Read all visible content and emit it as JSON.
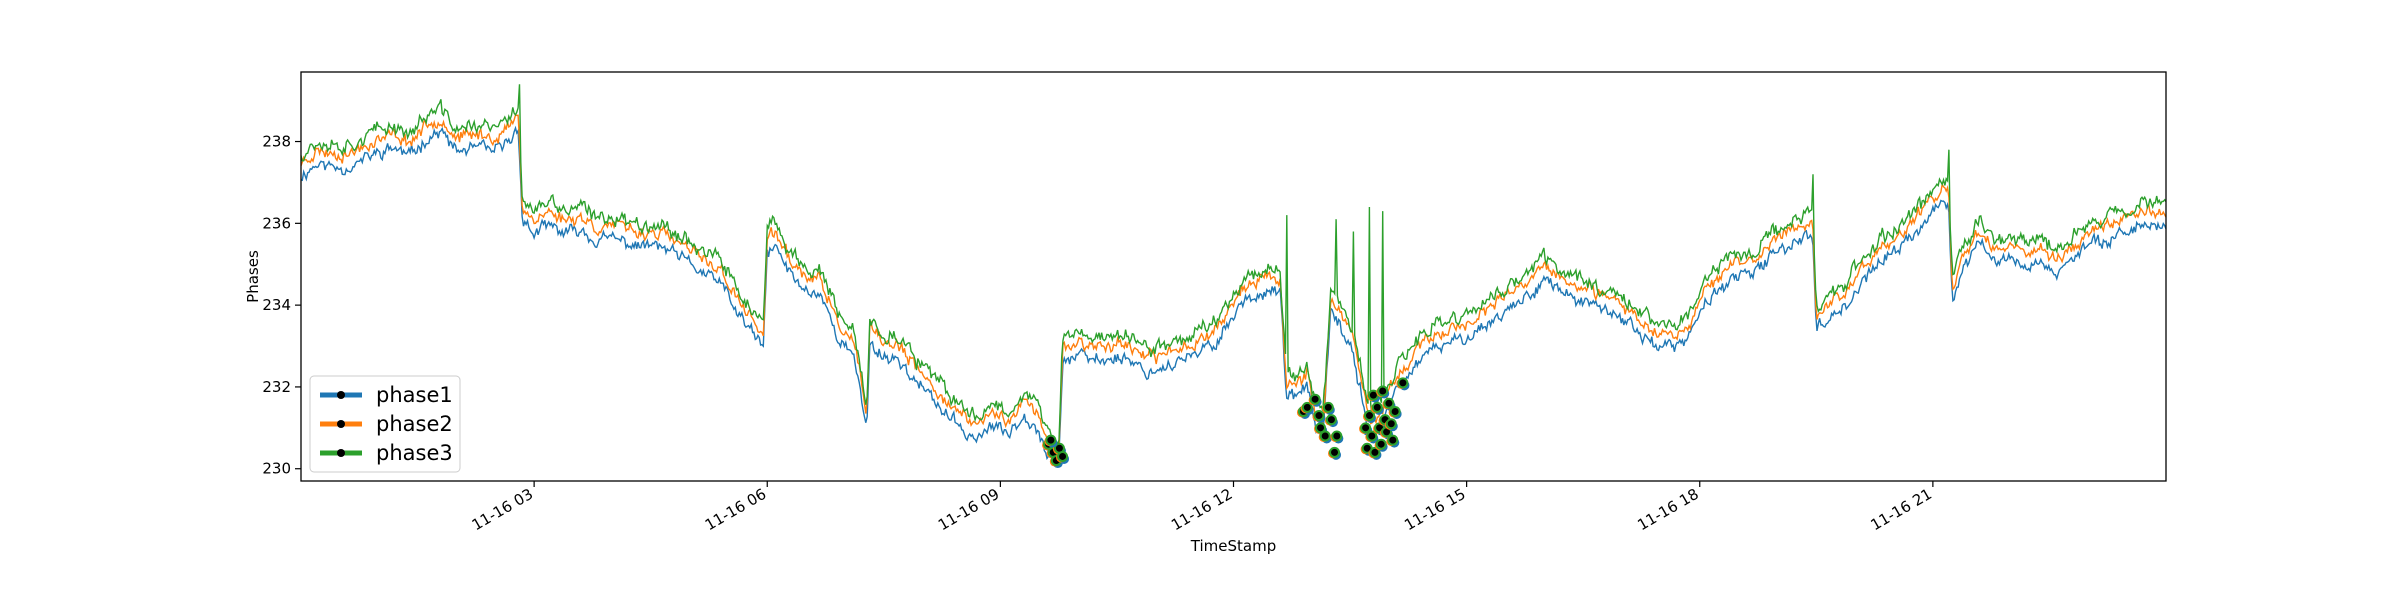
{
  "chart_data": {
    "type": "line",
    "title": "",
    "xlabel": "TimeStamp",
    "ylabel": "Phases",
    "x_range_hours": [
      0,
      24
    ],
    "x_ticks": [
      {
        "hour": 3,
        "label": "11-16 03"
      },
      {
        "hour": 6,
        "label": "11-16 06"
      },
      {
        "hour": 9,
        "label": "11-16 09"
      },
      {
        "hour": 12,
        "label": "11-16 12"
      },
      {
        "hour": 15,
        "label": "11-16 15"
      },
      {
        "hour": 18,
        "label": "11-16 18"
      },
      {
        "hour": 21,
        "label": "11-16 21"
      }
    ],
    "ylim": [
      229.7,
      239.7
    ],
    "y_ticks": [
      230,
      232,
      234,
      236,
      238
    ],
    "grid": false,
    "legend": "lower-left",
    "baseline": [
      [
        0,
        237.4
      ],
      [
        0.2,
        237.7
      ],
      [
        0.6,
        237.6
      ],
      [
        0.9,
        237.9
      ],
      [
        1.2,
        238.1
      ],
      [
        1.4,
        237.9
      ],
      [
        1.6,
        238.3
      ],
      [
        1.8,
        238.5
      ],
      [
        2.0,
        238.0
      ],
      [
        2.3,
        238.1
      ],
      [
        2.5,
        238.0
      ],
      [
        2.7,
        238.3
      ],
      [
        2.8,
        238.6
      ],
      [
        2.85,
        236.3
      ],
      [
        3.0,
        236.0
      ],
      [
        3.2,
        236.2
      ],
      [
        3.4,
        236.0
      ],
      [
        3.6,
        236.1
      ],
      [
        3.8,
        235.8
      ],
      [
        4.0,
        235.9
      ],
      [
        4.3,
        235.7
      ],
      [
        4.6,
        235.7
      ],
      [
        4.9,
        235.4
      ],
      [
        5.2,
        235.0
      ],
      [
        5.4,
        234.8
      ],
      [
        5.6,
        234.1
      ],
      [
        5.8,
        233.6
      ],
      [
        5.95,
        233.2
      ],
      [
        6.0,
        235.5
      ],
      [
        6.1,
        235.7
      ],
      [
        6.3,
        235.0
      ],
      [
        6.5,
        234.6
      ],
      [
        6.7,
        234.5
      ],
      [
        6.9,
        233.5
      ],
      [
        7.1,
        233.0
      ],
      [
        7.2,
        232.2
      ],
      [
        7.28,
        231.2
      ],
      [
        7.32,
        233.3
      ],
      [
        7.5,
        233.0
      ],
      [
        7.7,
        232.9
      ],
      [
        7.9,
        232.4
      ],
      [
        8.1,
        232.0
      ],
      [
        8.3,
        231.6
      ],
      [
        8.5,
        231.2
      ],
      [
        8.7,
        231.0
      ],
      [
        8.9,
        231.3
      ],
      [
        9.1,
        231.1
      ],
      [
        9.3,
        231.6
      ],
      [
        9.5,
        231.2
      ],
      [
        9.6,
        230.6
      ],
      [
        9.75,
        230.3
      ],
      [
        9.8,
        232.9
      ],
      [
        10.0,
        233.0
      ],
      [
        10.3,
        232.9
      ],
      [
        10.6,
        233.0
      ],
      [
        10.9,
        232.6
      ],
      [
        11.2,
        232.8
      ],
      [
        11.5,
        233.0
      ],
      [
        11.8,
        233.4
      ],
      [
        12.1,
        234.3
      ],
      [
        12.4,
        234.6
      ],
      [
        12.6,
        234.6
      ],
      [
        12.68,
        232.0
      ],
      [
        12.8,
        232.0
      ],
      [
        12.95,
        232.3
      ],
      [
        13.05,
        231.3
      ],
      [
        13.15,
        231.0
      ],
      [
        13.25,
        234.0
      ],
      [
        13.35,
        233.8
      ],
      [
        13.45,
        233.4
      ],
      [
        13.55,
        233.0
      ],
      [
        13.62,
        232.3
      ],
      [
        13.7,
        231.5
      ],
      [
        13.78,
        231.0
      ],
      [
        13.9,
        231.3
      ],
      [
        14.05,
        232.0
      ],
      [
        14.3,
        232.7
      ],
      [
        14.6,
        233.2
      ],
      [
        14.9,
        233.4
      ],
      [
        15.2,
        233.7
      ],
      [
        15.5,
        234.1
      ],
      [
        15.8,
        234.5
      ],
      [
        16.0,
        234.9
      ],
      [
        16.2,
        234.6
      ],
      [
        16.5,
        234.3
      ],
      [
        16.8,
        234.1
      ],
      [
        17.1,
        233.8
      ],
      [
        17.4,
        233.3
      ],
      [
        17.7,
        233.2
      ],
      [
        17.9,
        233.6
      ],
      [
        18.1,
        234.4
      ],
      [
        18.4,
        234.9
      ],
      [
        18.7,
        235.0
      ],
      [
        18.9,
        235.4
      ],
      [
        19.2,
        235.8
      ],
      [
        19.45,
        236.0
      ],
      [
        19.5,
        233.7
      ],
      [
        19.7,
        234.0
      ],
      [
        19.9,
        234.3
      ],
      [
        20.1,
        234.8
      ],
      [
        20.3,
        235.3
      ],
      [
        20.5,
        235.5
      ],
      [
        20.7,
        235.9
      ],
      [
        20.9,
        236.3
      ],
      [
        21.1,
        236.7
      ],
      [
        21.2,
        236.8
      ],
      [
        21.25,
        234.3
      ],
      [
        21.4,
        235.2
      ],
      [
        21.6,
        235.8
      ],
      [
        21.8,
        235.3
      ],
      [
        22.0,
        235.4
      ],
      [
        22.2,
        235.2
      ],
      [
        22.4,
        235.3
      ],
      [
        22.6,
        235.0
      ],
      [
        22.8,
        235.4
      ],
      [
        23.1,
        235.8
      ],
      [
        23.4,
        236.0
      ],
      [
        23.7,
        236.2
      ],
      [
        24.0,
        236.2
      ]
    ],
    "series": [
      {
        "name": "phase1",
        "color": "#1f77b4",
        "offset": -0.25,
        "noise": 0.22,
        "seed": 11
      },
      {
        "name": "phase2",
        "color": "#ff7f0e",
        "offset": 0.08,
        "noise": 0.22,
        "seed": 23
      },
      {
        "name": "phase3",
        "color": "#2ca02c",
        "offset": 0.3,
        "noise": 0.26,
        "seed": 37
      }
    ],
    "spikes": [
      {
        "series": "phase3",
        "hour": 2.82,
        "value": 239.4
      },
      {
        "series": "phase3",
        "hour": 12.68,
        "value": 236.2
      },
      {
        "series": "phase3",
        "hour": 13.32,
        "value": 236.1
      },
      {
        "series": "phase3",
        "hour": 13.55,
        "value": 235.8
      },
      {
        "series": "phase3",
        "hour": 13.75,
        "value": 236.4
      },
      {
        "series": "phase3",
        "hour": 13.92,
        "value": 236.3
      },
      {
        "series": "phase3",
        "hour": 19.45,
        "value": 237.2
      },
      {
        "series": "phase3",
        "hour": 21.2,
        "value": 237.8
      }
    ],
    "markers": [
      {
        "hour": 9.62,
        "value": 230.6
      },
      {
        "hour": 9.68,
        "value": 230.4
      },
      {
        "hour": 9.72,
        "value": 230.2
      },
      {
        "hour": 9.76,
        "value": 230.5
      },
      {
        "hour": 9.8,
        "value": 230.3
      },
      {
        "hour": 9.65,
        "value": 230.7
      },
      {
        "hour": 12.9,
        "value": 231.4
      },
      {
        "hour": 12.95,
        "value": 231.5
      },
      {
        "hour": 13.05,
        "value": 231.7
      },
      {
        "hour": 13.1,
        "value": 231.3
      },
      {
        "hour": 13.12,
        "value": 231.0
      },
      {
        "hour": 13.18,
        "value": 230.8
      },
      {
        "hour": 13.22,
        "value": 231.5
      },
      {
        "hour": 13.26,
        "value": 231.2
      },
      {
        "hour": 13.3,
        "value": 230.4
      },
      {
        "hour": 13.33,
        "value": 230.8
      },
      {
        "hour": 13.7,
        "value": 231.0
      },
      {
        "hour": 13.72,
        "value": 230.5
      },
      {
        "hour": 13.75,
        "value": 231.3
      },
      {
        "hour": 13.78,
        "value": 230.8
      },
      {
        "hour": 13.8,
        "value": 231.8
      },
      {
        "hour": 13.82,
        "value": 230.4
      },
      {
        "hour": 13.85,
        "value": 231.5
      },
      {
        "hour": 13.88,
        "value": 231.0
      },
      {
        "hour": 13.9,
        "value": 230.6
      },
      {
        "hour": 13.92,
        "value": 231.9
      },
      {
        "hour": 13.95,
        "value": 231.2
      },
      {
        "hour": 13.97,
        "value": 230.9
      },
      {
        "hour": 14.0,
        "value": 231.6
      },
      {
        "hour": 14.03,
        "value": 231.1
      },
      {
        "hour": 14.05,
        "value": 230.7
      },
      {
        "hour": 14.08,
        "value": 231.4
      },
      {
        "hour": 14.18,
        "value": 232.1
      }
    ]
  }
}
